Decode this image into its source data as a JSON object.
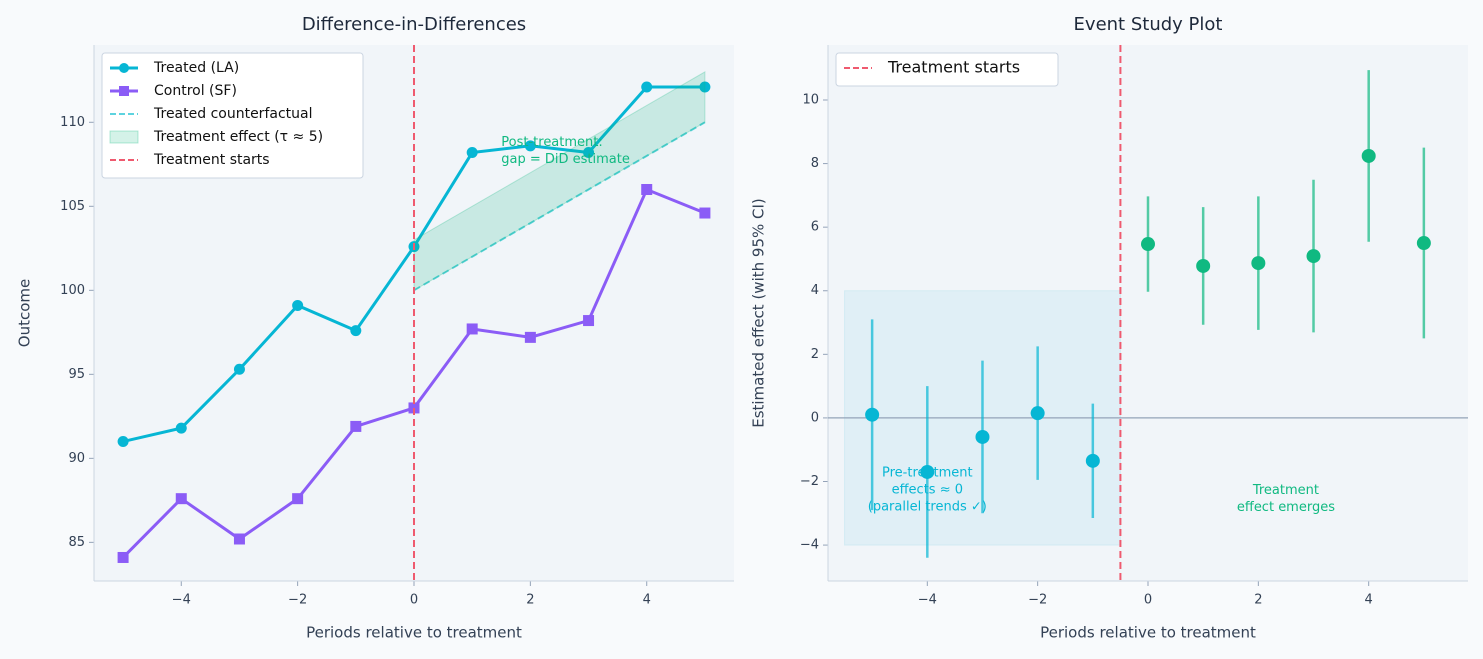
{
  "chart_data": [
    {
      "type": "line",
      "title": "Difference-in-Differences",
      "x_label": "Periods relative to treatment",
      "y_label": "Outcome",
      "xlim": [
        -5.5,
        5.5
      ],
      "ylim": [
        82.7,
        114.6
      ],
      "xticks": [
        {
          "value": -4,
          "label": "−4"
        },
        {
          "value": -2,
          "label": "−2"
        },
        0,
        2,
        4
      ],
      "yticks": [
        85,
        90,
        95,
        100,
        105,
        110
      ],
      "legend": "upper left",
      "series": [
        {
          "name": "Treated (LA)",
          "kind": "line",
          "marker": "circle",
          "color": "#06b6d4",
          "x": [
            -5,
            -4,
            -3,
            -2,
            -1,
            0,
            1,
            2,
            3,
            4,
            5
          ],
          "values": [
            91.0,
            91.8,
            95.3,
            99.1,
            97.6,
            102.6,
            108.2,
            108.6,
            108.2,
            112.1,
            112.1
          ]
        },
        {
          "name": "Control (SF)",
          "kind": "line",
          "marker": "square",
          "color": "#8b5cf6",
          "x": [
            -5,
            -4,
            -3,
            -2,
            -1,
            0,
            1,
            2,
            3,
            4,
            5
          ],
          "values": [
            84.1,
            87.6,
            85.2,
            87.6,
            91.9,
            93.0,
            97.7,
            97.2,
            98.2,
            106.0,
            104.6
          ]
        },
        {
          "name": "Treated counterfactual",
          "kind": "dashed",
          "color": "#5dd3df",
          "x": [
            0,
            1,
            2,
            3,
            4,
            5
          ],
          "values": [
            100,
            102,
            104,
            106,
            108,
            110
          ]
        },
        {
          "name": "Treatment effect (τ ≈ 5)",
          "kind": "area",
          "color": "#10b981",
          "x": [
            0,
            1,
            2,
            3,
            4,
            5
          ],
          "values": [
            103,
            105,
            107,
            109,
            111,
            113
          ],
          "base": [
            100,
            102,
            104,
            106,
            108,
            110
          ]
        }
      ],
      "vline": {
        "name": "Treatment starts",
        "x": 0,
        "color": "#ef5a6f"
      },
      "annotations": [
        {
          "text": [
            "Post-treatment:",
            "gap = DiD estimate"
          ],
          "x": 1.5,
          "y": 108.3,
          "align": "start",
          "color": "#10b981"
        }
      ]
    },
    {
      "type": "errorbar",
      "title": "Event Study Plot",
      "x_label": "Periods relative to treatment",
      "y_label": "Estimated effect (with 95% CI)",
      "xlim": [
        -5.8,
        5.8
      ],
      "ylim": [
        -5.13,
        11.73
      ],
      "xticks": [
        {
          "value": -4,
          "label": "−4"
        },
        {
          "value": -2,
          "label": "−2"
        },
        0,
        2,
        4
      ],
      "yticks": [
        {
          "value": -4,
          "label": "−4"
        },
        {
          "value": -2,
          "label": "−2"
        },
        0,
        2,
        4,
        6,
        8,
        10
      ],
      "legend": "upper left",
      "shade": {
        "x": [
          -5.5,
          -0.5
        ],
        "y": [
          -4,
          4
        ],
        "color": "#bfe6f0"
      },
      "hline": {
        "y": 0,
        "color": "#94a3b8"
      },
      "series": [
        {
          "color": "#06b6d4",
          "x": [
            -5,
            -4,
            -3,
            -2,
            -1
          ],
          "values": [
            0.1,
            -1.7,
            -0.6,
            0.15,
            -1.35
          ],
          "errors": [
            3.0,
            2.7,
            2.4,
            2.1,
            1.8
          ]
        },
        {
          "color": "#10b981",
          "x": [
            0,
            1,
            2,
            3,
            4,
            5
          ],
          "values": [
            5.47,
            4.78,
            4.87,
            5.09,
            8.24,
            5.5
          ],
          "errors": [
            1.5,
            1.85,
            2.1,
            2.4,
            2.7,
            3.0
          ]
        }
      ],
      "vline": {
        "name": "Treatment starts",
        "x": -0.5,
        "color": "#ef5a6f"
      },
      "annotations": [
        {
          "text": [
            "Pre-treatment",
            "effects ≈ 0",
            "(parallel trends ✓)"
          ],
          "x": -4,
          "y": -2.26,
          "align": "middle",
          "color": "#06b6d4"
        },
        {
          "text": [
            "Treatment",
            "effect emerges"
          ],
          "x": 2.5,
          "y": -2.55,
          "align": "middle",
          "color": "#10b981"
        }
      ]
    }
  ]
}
